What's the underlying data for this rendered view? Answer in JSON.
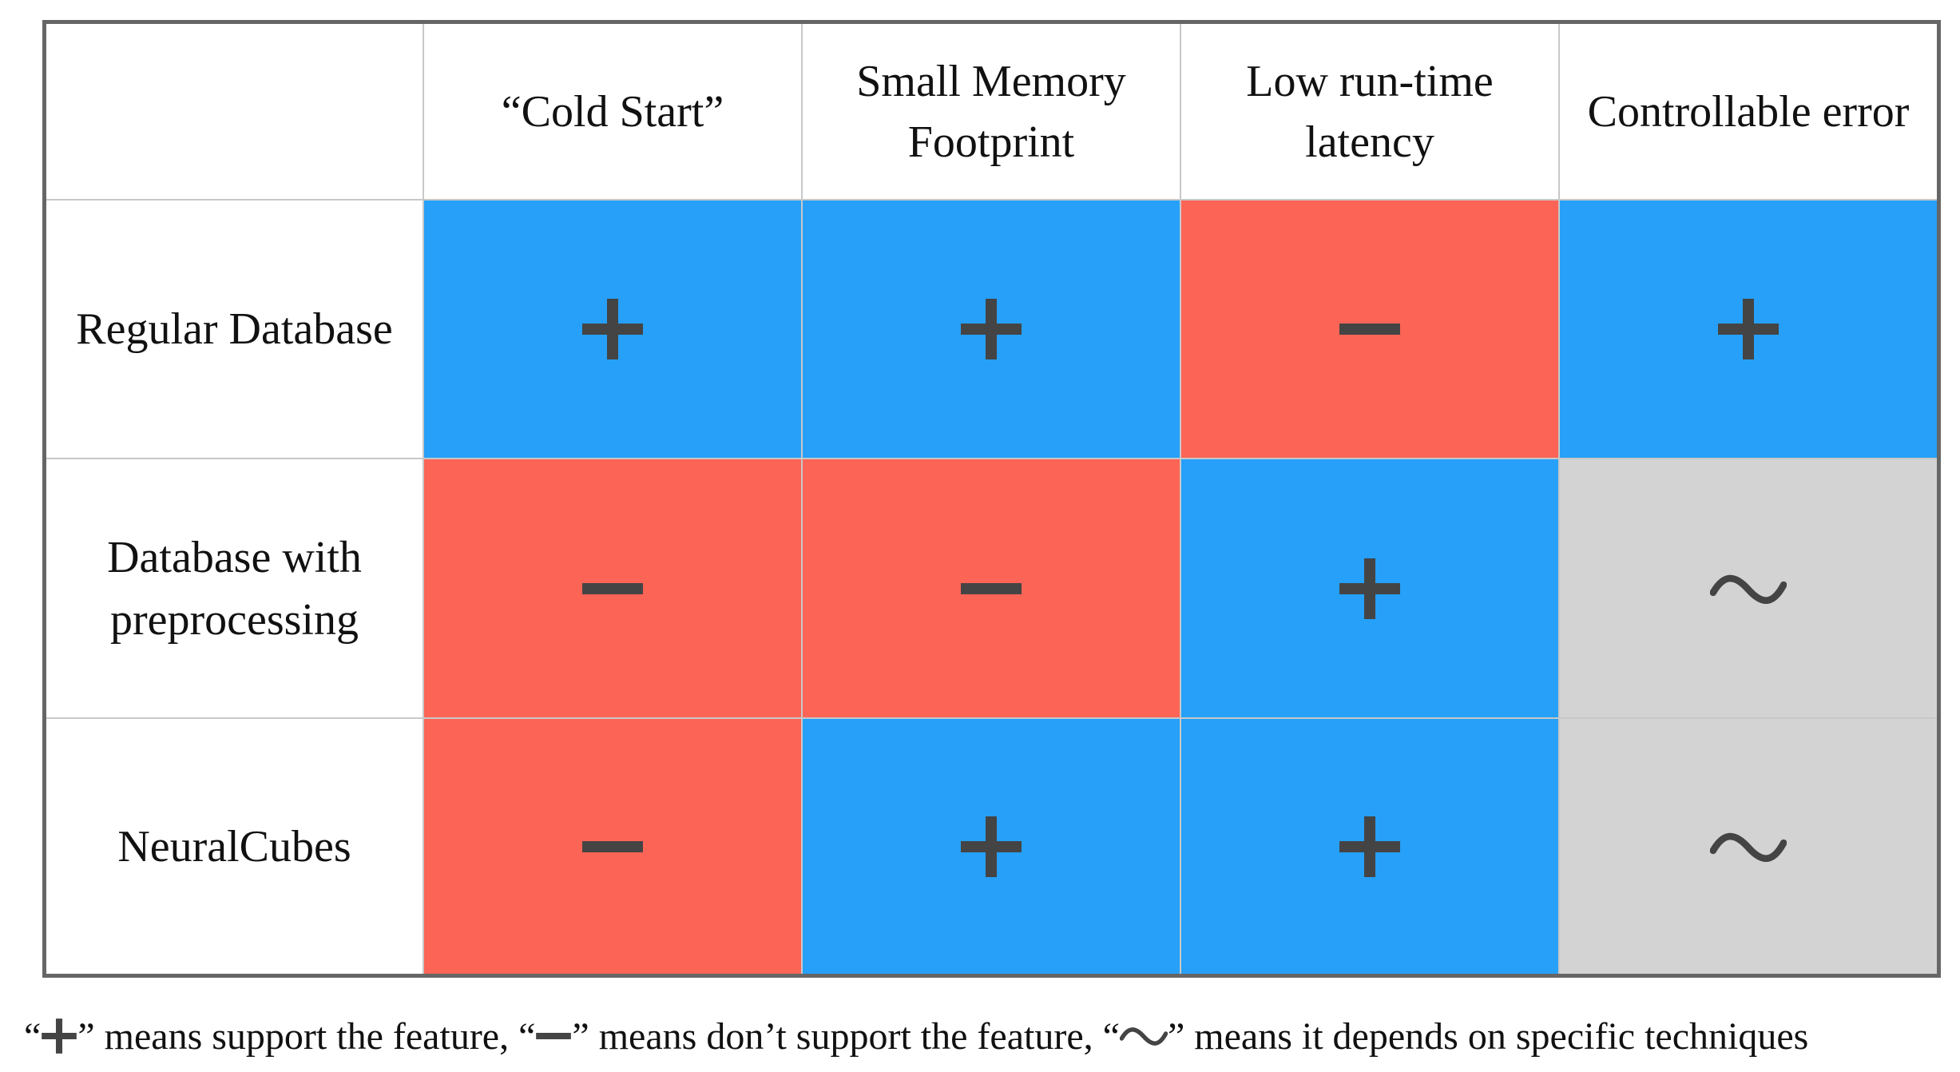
{
  "table": {
    "columns": [
      "“Cold Start”",
      "Small Memory\nFootprint",
      "Low run-time\nlatency",
      "Controllable error"
    ],
    "rows": [
      {
        "label": "Regular Database",
        "values": [
          "plus",
          "plus",
          "minus",
          "plus"
        ]
      },
      {
        "label": "Database with\npreprocessing",
        "values": [
          "minus",
          "minus",
          "plus",
          "tilde"
        ]
      },
      {
        "label": "NeuralCubes",
        "values": [
          "minus",
          "plus",
          "plus",
          "tilde"
        ]
      }
    ]
  },
  "legend": {
    "open_quote": "“",
    "plus_text": "” means support the feature, “",
    "minus_text": "” means don’t support the feature, “",
    "tilde_text": "” means it depends on specific techniques"
  },
  "colors": {
    "support": "#26a0f8",
    "no_support": "#fc6456",
    "depends": "#d3d3d3",
    "symbol": "#444444"
  },
  "icons": {
    "plus": "plus-icon",
    "minus": "minus-icon",
    "tilde": "tilde-icon"
  }
}
